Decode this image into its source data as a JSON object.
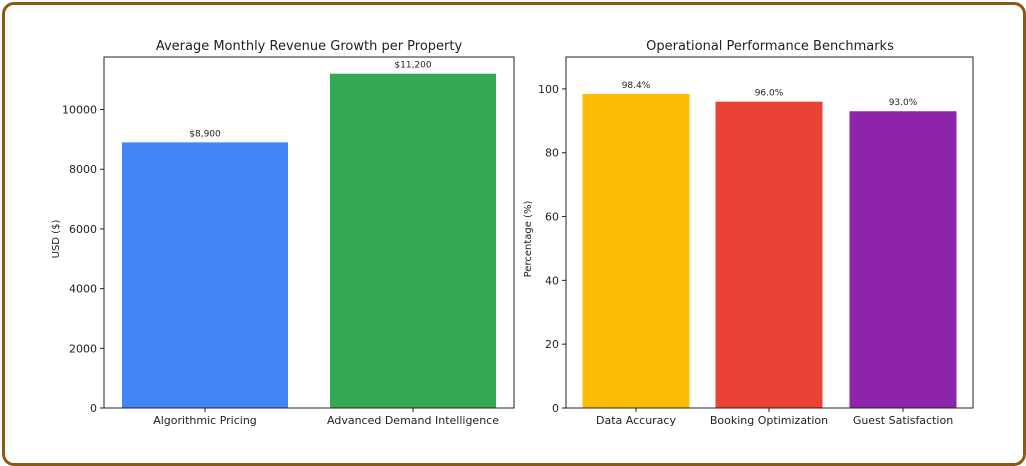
{
  "chart_data": [
    {
      "type": "bar",
      "title": "Average Monthly Revenue Growth per Property",
      "xlabel": "",
      "ylabel": "USD ($)",
      "categories": [
        "Algorithmic Pricing",
        "Advanced Demand Intelligence"
      ],
      "values": [
        8900,
        11200
      ],
      "data_labels": [
        "$8,900",
        "$11,200"
      ],
      "colors": [
        "#4285f4",
        "#34a853"
      ],
      "ylim": [
        0,
        11760
      ],
      "yticks": [
        0,
        2000,
        4000,
        6000,
        8000,
        10000
      ],
      "ytick_labels": [
        "0",
        "2000",
        "4000",
        "6000",
        "8000",
        "10000"
      ],
      "grid": false,
      "legend": "none"
    },
    {
      "type": "bar",
      "title": "Operational Performance Benchmarks",
      "xlabel": "",
      "ylabel": "Percentage (%)",
      "categories": [
        "Data Accuracy",
        "Booking Optimization",
        "Guest Satisfaction"
      ],
      "values": [
        98.4,
        96.0,
        93.0
      ],
      "data_labels": [
        "98.4%",
        "96.0%",
        "93.0%"
      ],
      "colors": [
        "#fbbc04",
        "#ea4335",
        "#8e24aa"
      ],
      "ylim": [
        0,
        110
      ],
      "yticks": [
        0,
        20,
        40,
        60,
        80,
        100
      ],
      "ytick_labels": [
        "0",
        "20",
        "40",
        "60",
        "80",
        "100"
      ],
      "grid": false,
      "legend": "none"
    }
  ]
}
